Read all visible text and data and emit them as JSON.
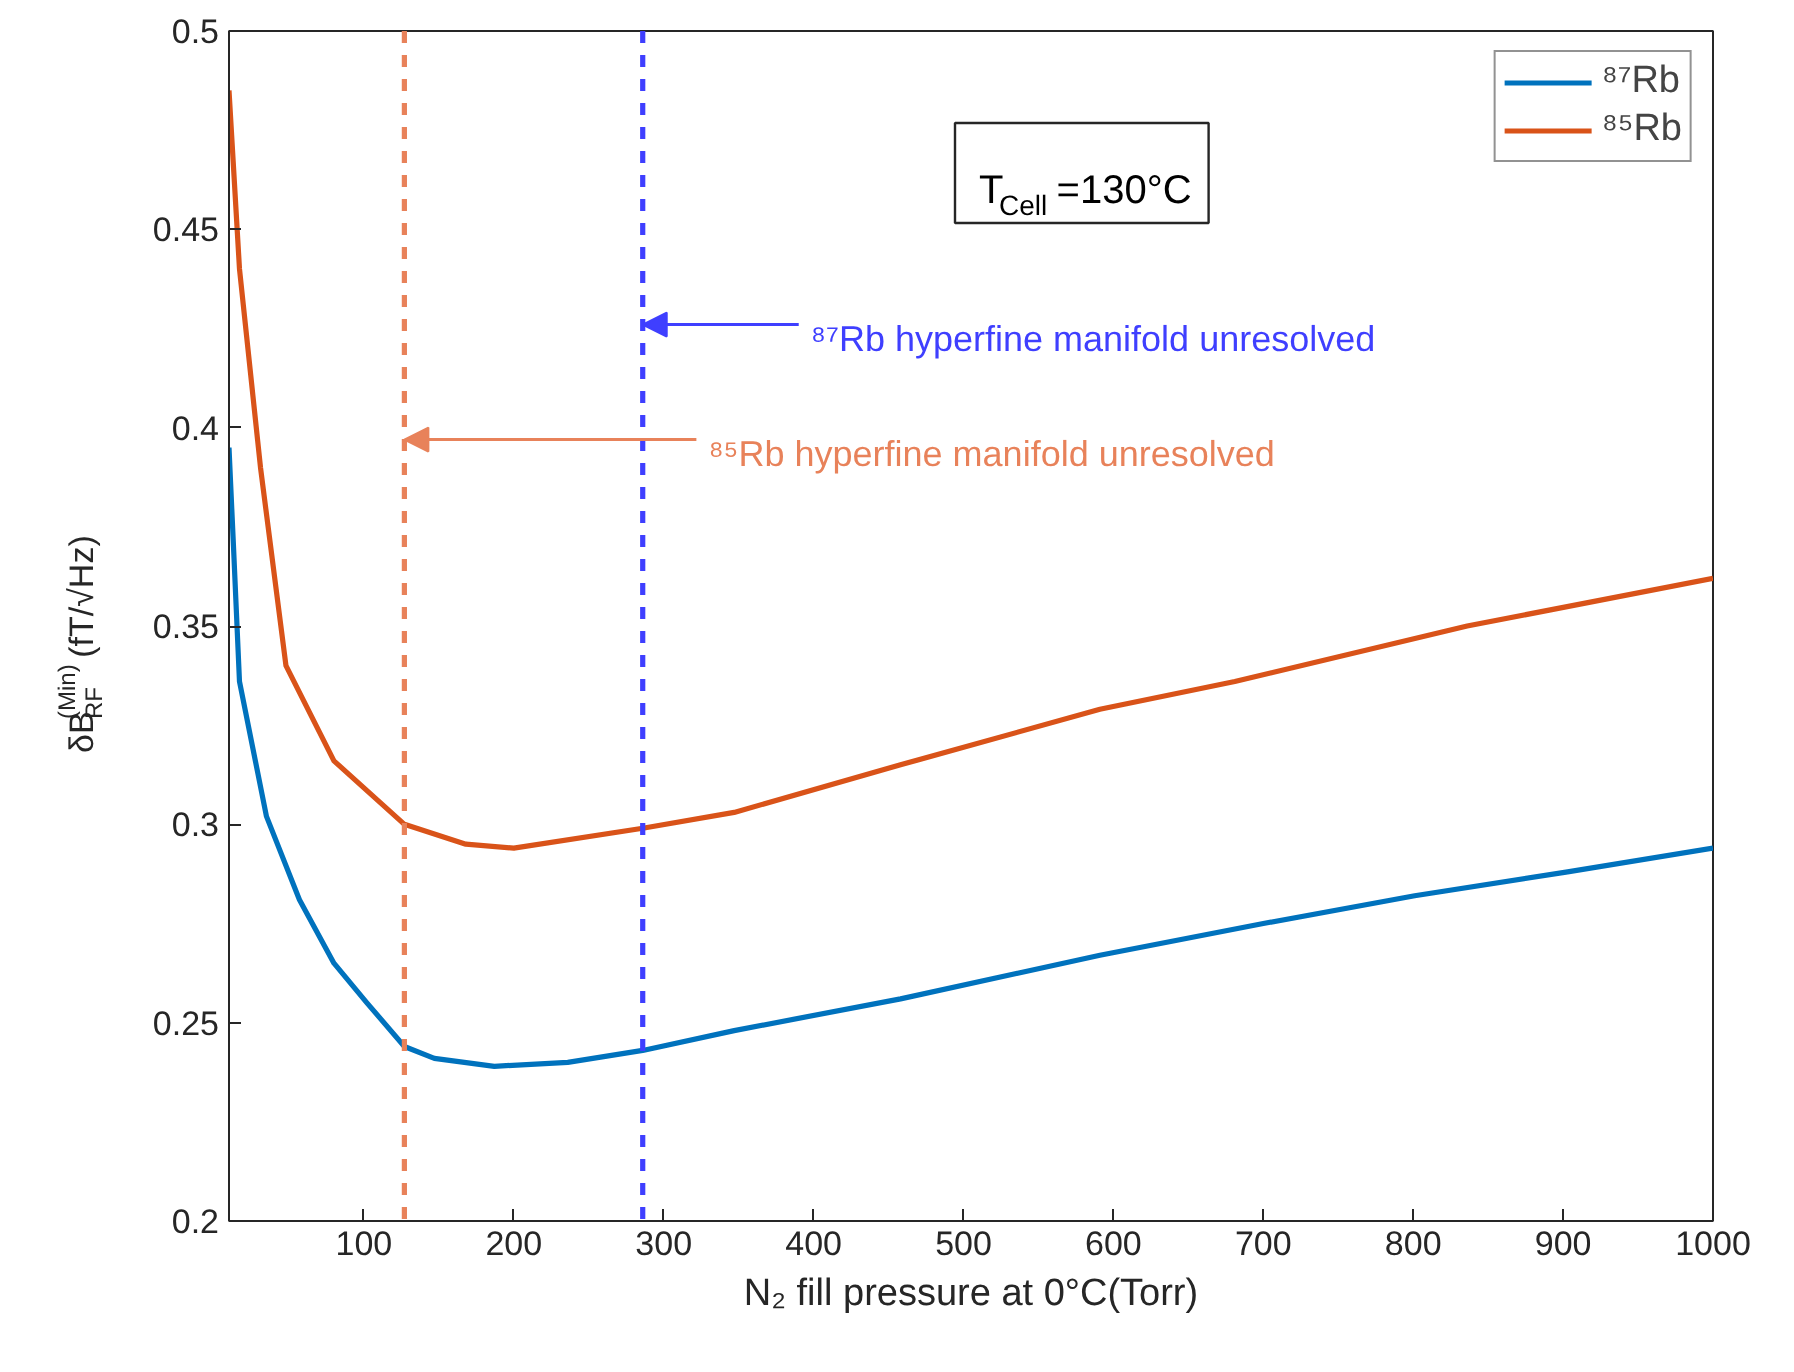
{
  "chart_data": {
    "type": "line",
    "xlabel": "N₂ fill pressure at 0°C(Torr)",
    "ylabel": "δB$_{RF}$$^{(Min)}$(fT/√Hz)",
    "series": [
      {
        "name": "⁸⁷Rb",
        "color": "#0072bd",
        "x": [
          10,
          13,
          17,
          35,
          57,
          80,
          102,
          127,
          147,
          187,
          236,
          286,
          347,
          458,
          591,
          700,
          801,
          903,
          1000
        ],
        "values": [
          0.395,
          0.37,
          0.336,
          0.302,
          0.281,
          0.265,
          0.255,
          0.244,
          0.241,
          0.239,
          0.24,
          0.243,
          0.248,
          0.256,
          0.267,
          0.275,
          0.282,
          0.288,
          0.294
        ]
      },
      {
        "name": "⁸⁵Rb",
        "color": "#d95319",
        "x": [
          10,
          17,
          31,
          48,
          80,
          127,
          168,
          200,
          286,
          347,
          458,
          591,
          681,
          836,
          1000
        ],
        "values": [
          0.485,
          0.44,
          0.39,
          0.34,
          0.316,
          0.3,
          0.295,
          0.294,
          0.299,
          0.303,
          0.315,
          0.329,
          0.336,
          0.35,
          0.362
        ]
      }
    ],
    "ref_lines": [
      {
        "axis": "x",
        "value": 127,
        "color": "#e8825a",
        "line_style": "dashed"
      },
      {
        "axis": "x",
        "value": 286,
        "color": "#3f3fff",
        "line_style": "dashed"
      }
    ],
    "annotations": [
      "T$_{Cell}$=130°C",
      {
        "text": "⁸⁷Rb hyperfine manifold unresolved",
        "x": 286,
        "y": 0.426
      },
      {
        "text": "⁸⁵Rb hyperfine manifold unresolved",
        "x": 127,
        "y": 0.397
      }
    ],
    "xlim": [
      10,
      1000
    ],
    "ylim": [
      0.2,
      0.5
    ],
    "xticks": [
      100,
      200,
      300,
      400,
      500,
      600,
      700,
      800,
      900,
      1000
    ],
    "yticks": [
      0.2,
      0.25,
      0.3,
      0.35,
      0.4,
      0.45,
      0.5
    ],
    "grid": false,
    "legend": "top right",
    "line_style": "solid",
    "marker": "none"
  }
}
